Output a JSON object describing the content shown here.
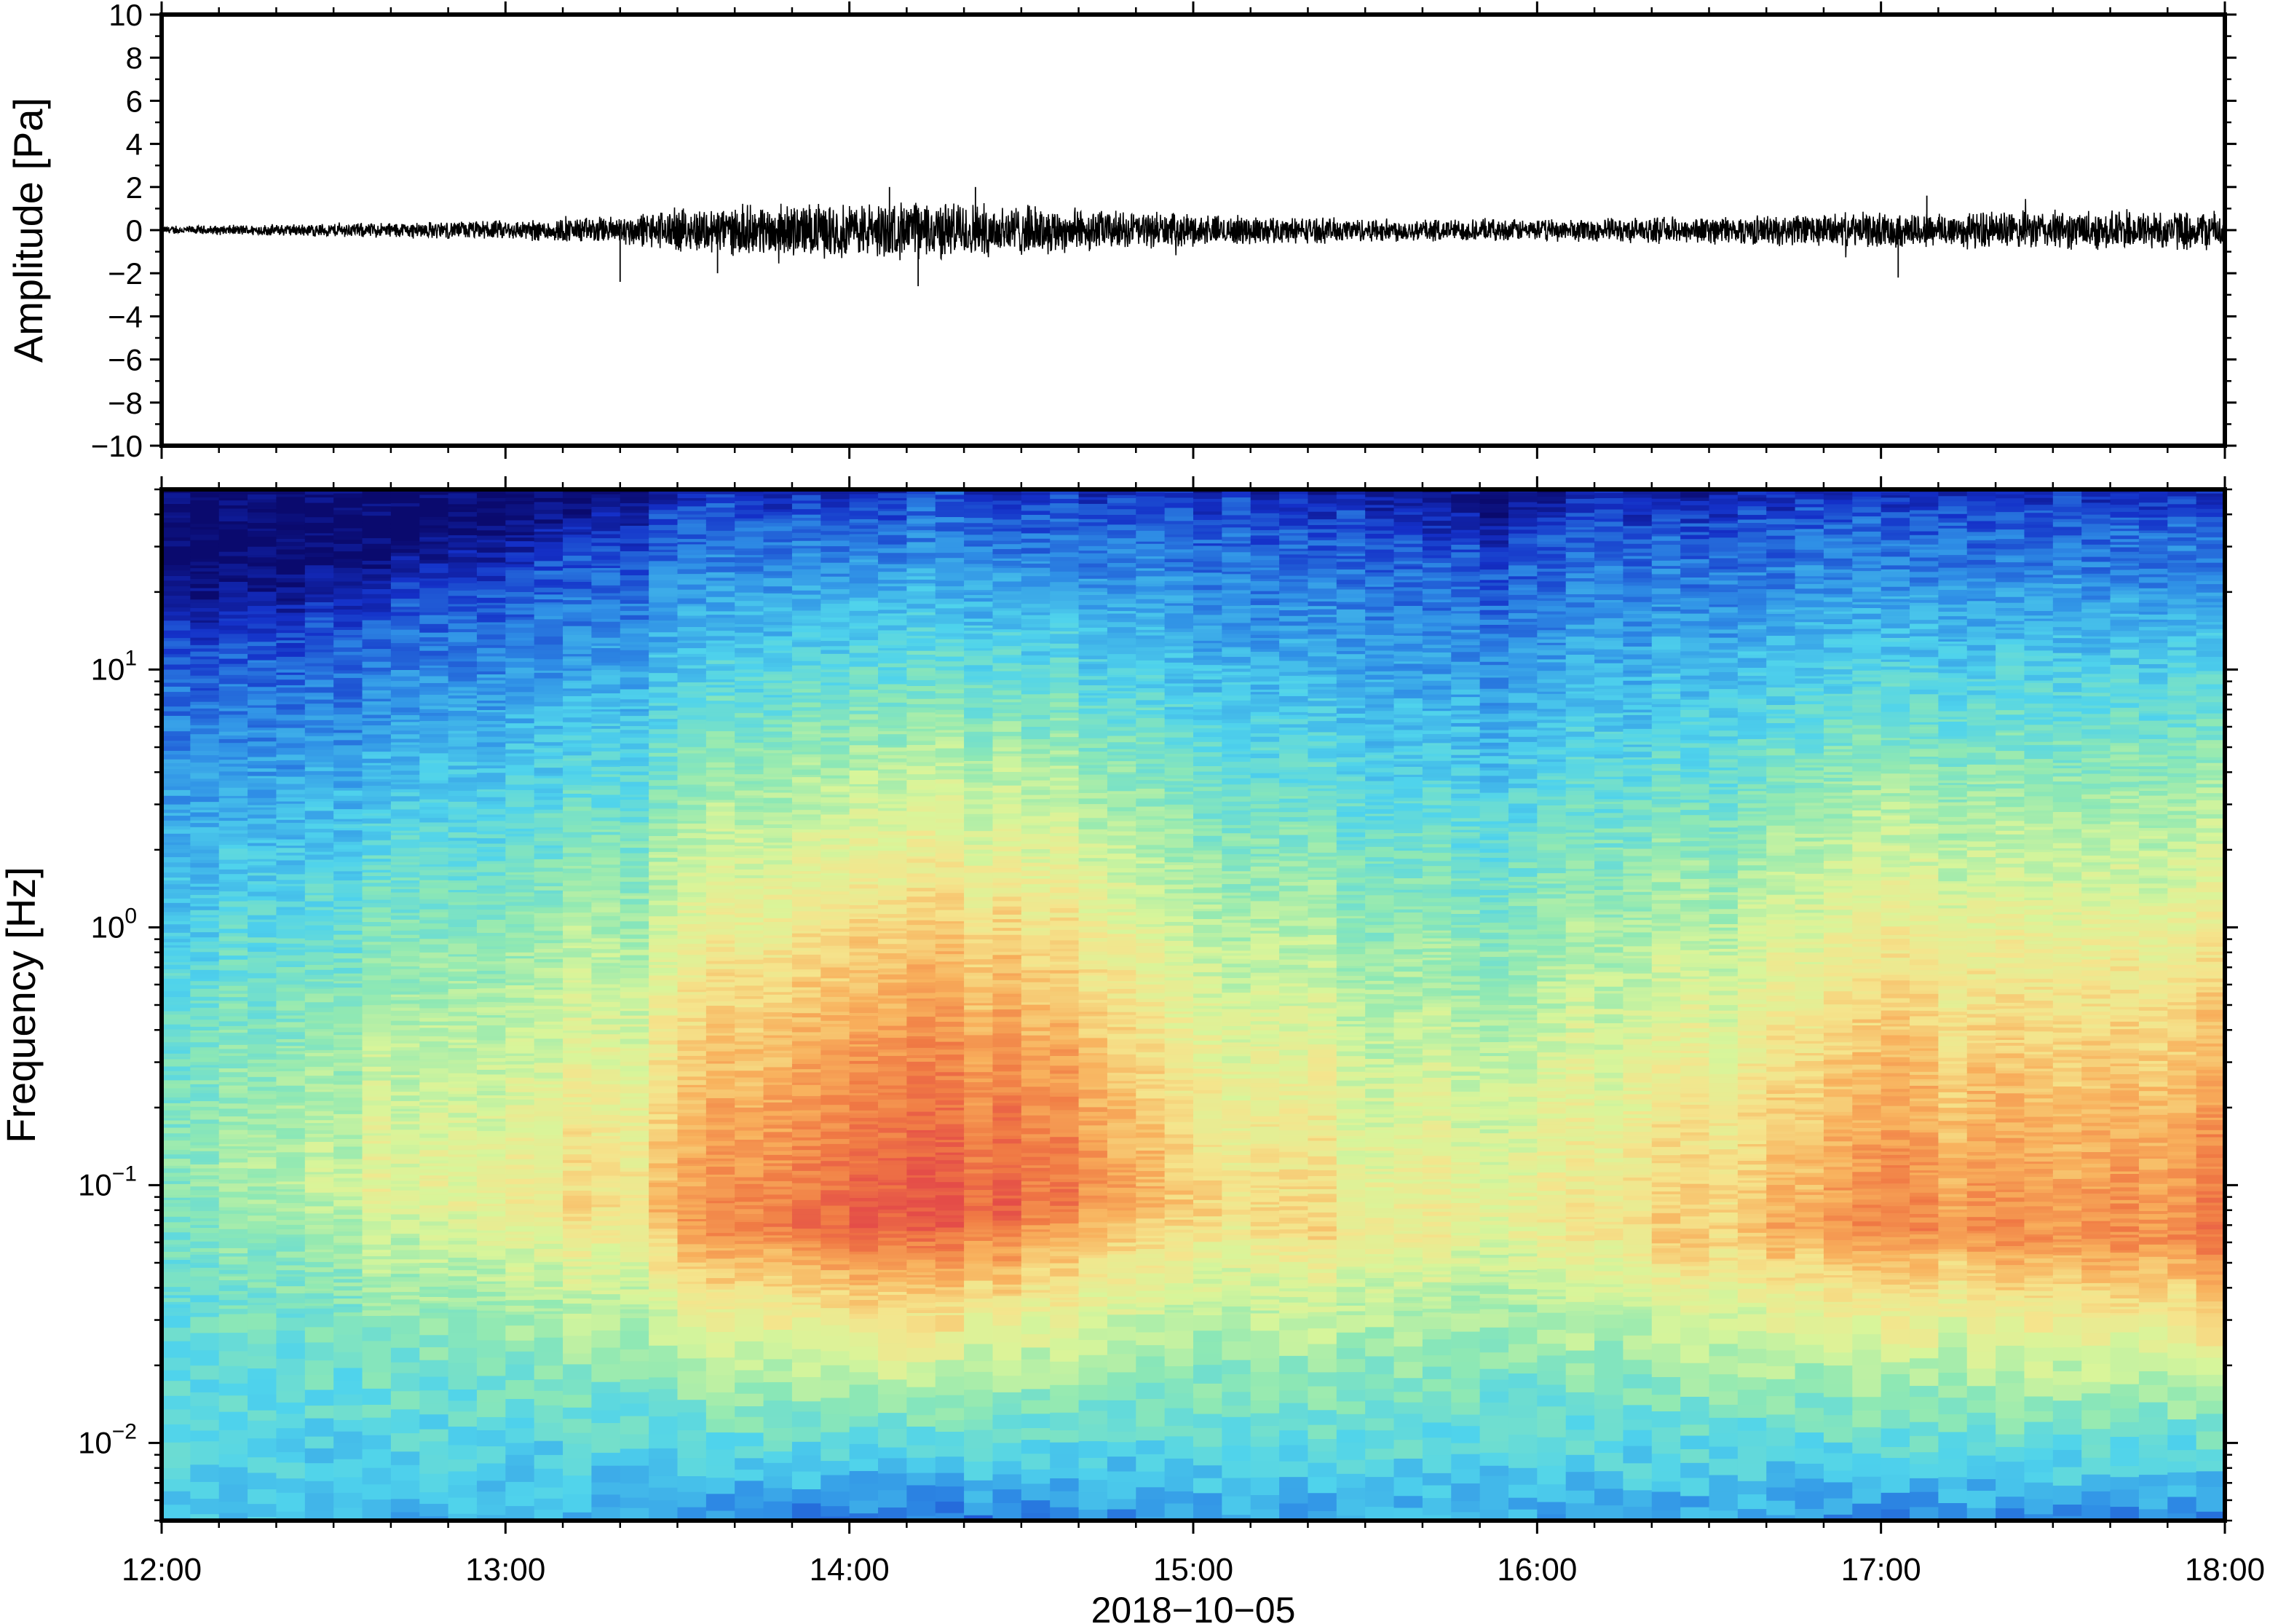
{
  "chart_data": [
    {
      "type": "line",
      "ylabel": "Amplitude [Pa]",
      "ylim": [
        -10,
        10
      ],
      "yticks": [
        10,
        8,
        6,
        4,
        2,
        0,
        -2,
        -4,
        -6,
        -8,
        -10
      ],
      "ytick_labels": [
        "10",
        "8",
        "6",
        "4",
        "2",
        "0",
        "−2",
        "−4",
        "−6",
        "−8",
        "−10"
      ],
      "xlim": [
        "12:00",
        "18:00"
      ],
      "grid": false,
      "series": [
        {
          "color": "#000000",
          "x_hours": [
            12.0,
            12.5,
            13.0,
            13.3,
            13.5,
            13.75,
            14.0,
            14.25,
            14.5,
            14.75,
            15.0,
            15.5,
            16.0,
            16.5,
            17.0,
            17.5,
            18.0
          ],
          "envelope_pa": [
            0.2,
            0.35,
            0.5,
            0.7,
            1.1,
            1.3,
            1.4,
            1.5,
            1.3,
            1.0,
            0.8,
            0.6,
            0.55,
            0.7,
            0.9,
            1.0,
            1.0
          ],
          "spikes": [
            {
              "x": "13:20",
              "y": -2.4
            },
            {
              "x": "13:37",
              "y": -2.0
            },
            {
              "x": "14:07",
              "y": 2.0
            },
            {
              "x": "14:12",
              "y": -2.6
            },
            {
              "x": "14:22",
              "y": 2.0
            },
            {
              "x": "17:03",
              "y": -2.2
            },
            {
              "x": "17:08",
              "y": 1.6
            }
          ]
        }
      ]
    },
    {
      "type": "heatmap",
      "ylabel": "Frequency [Hz]",
      "xlabel": "2018−10−05",
      "yscale": "log",
      "ylim": [
        0.005,
        50
      ],
      "ytick_labels": [
        {
          "base": "10",
          "exp": "1",
          "value": 10
        },
        {
          "base": "10",
          "exp": "0",
          "value": 1
        },
        {
          "base": "10",
          "exp": "−1",
          "value": 0.1
        },
        {
          "base": "10",
          "exp": "−2",
          "value": 0.01
        }
      ],
      "xticks": [
        "12:00",
        "13:00",
        "14:00",
        "15:00",
        "16:00",
        "17:00",
        "18:00"
      ],
      "xlim": [
        "12:00",
        "18:00"
      ],
      "colormap": [
        "#0a0a6e",
        "#1430c8",
        "#2f8fe6",
        "#4fd3ec",
        "#8ee8b4",
        "#d8f59a",
        "#f5e48c",
        "#f8b05c",
        "#f07a44",
        "#e44c48"
      ],
      "time_hours": [
        12.0,
        12.5,
        13.0,
        13.4,
        13.5,
        14.0,
        14.5,
        14.7,
        15.0,
        15.5,
        15.9,
        16.0,
        16.5,
        17.0,
        17.5,
        18.0
      ],
      "upper_edge_hz": [
        13,
        16,
        25,
        30,
        45,
        48,
        48,
        47,
        44,
        40,
        28,
        38,
        42,
        45,
        45,
        45
      ],
      "power_peak_hz": [
        0.12,
        0.1,
        0.08,
        0.08,
        0.07,
        0.07,
        0.08,
        0.09,
        0.08,
        0.06,
        0.07,
        0.07,
        0.06,
        0.07,
        0.06,
        0.06
      ],
      "power_peak_level": [
        0.45,
        0.55,
        0.65,
        0.7,
        0.85,
        0.95,
        0.95,
        0.85,
        0.7,
        0.65,
        0.6,
        0.65,
        0.72,
        0.85,
        0.82,
        0.9
      ]
    }
  ]
}
